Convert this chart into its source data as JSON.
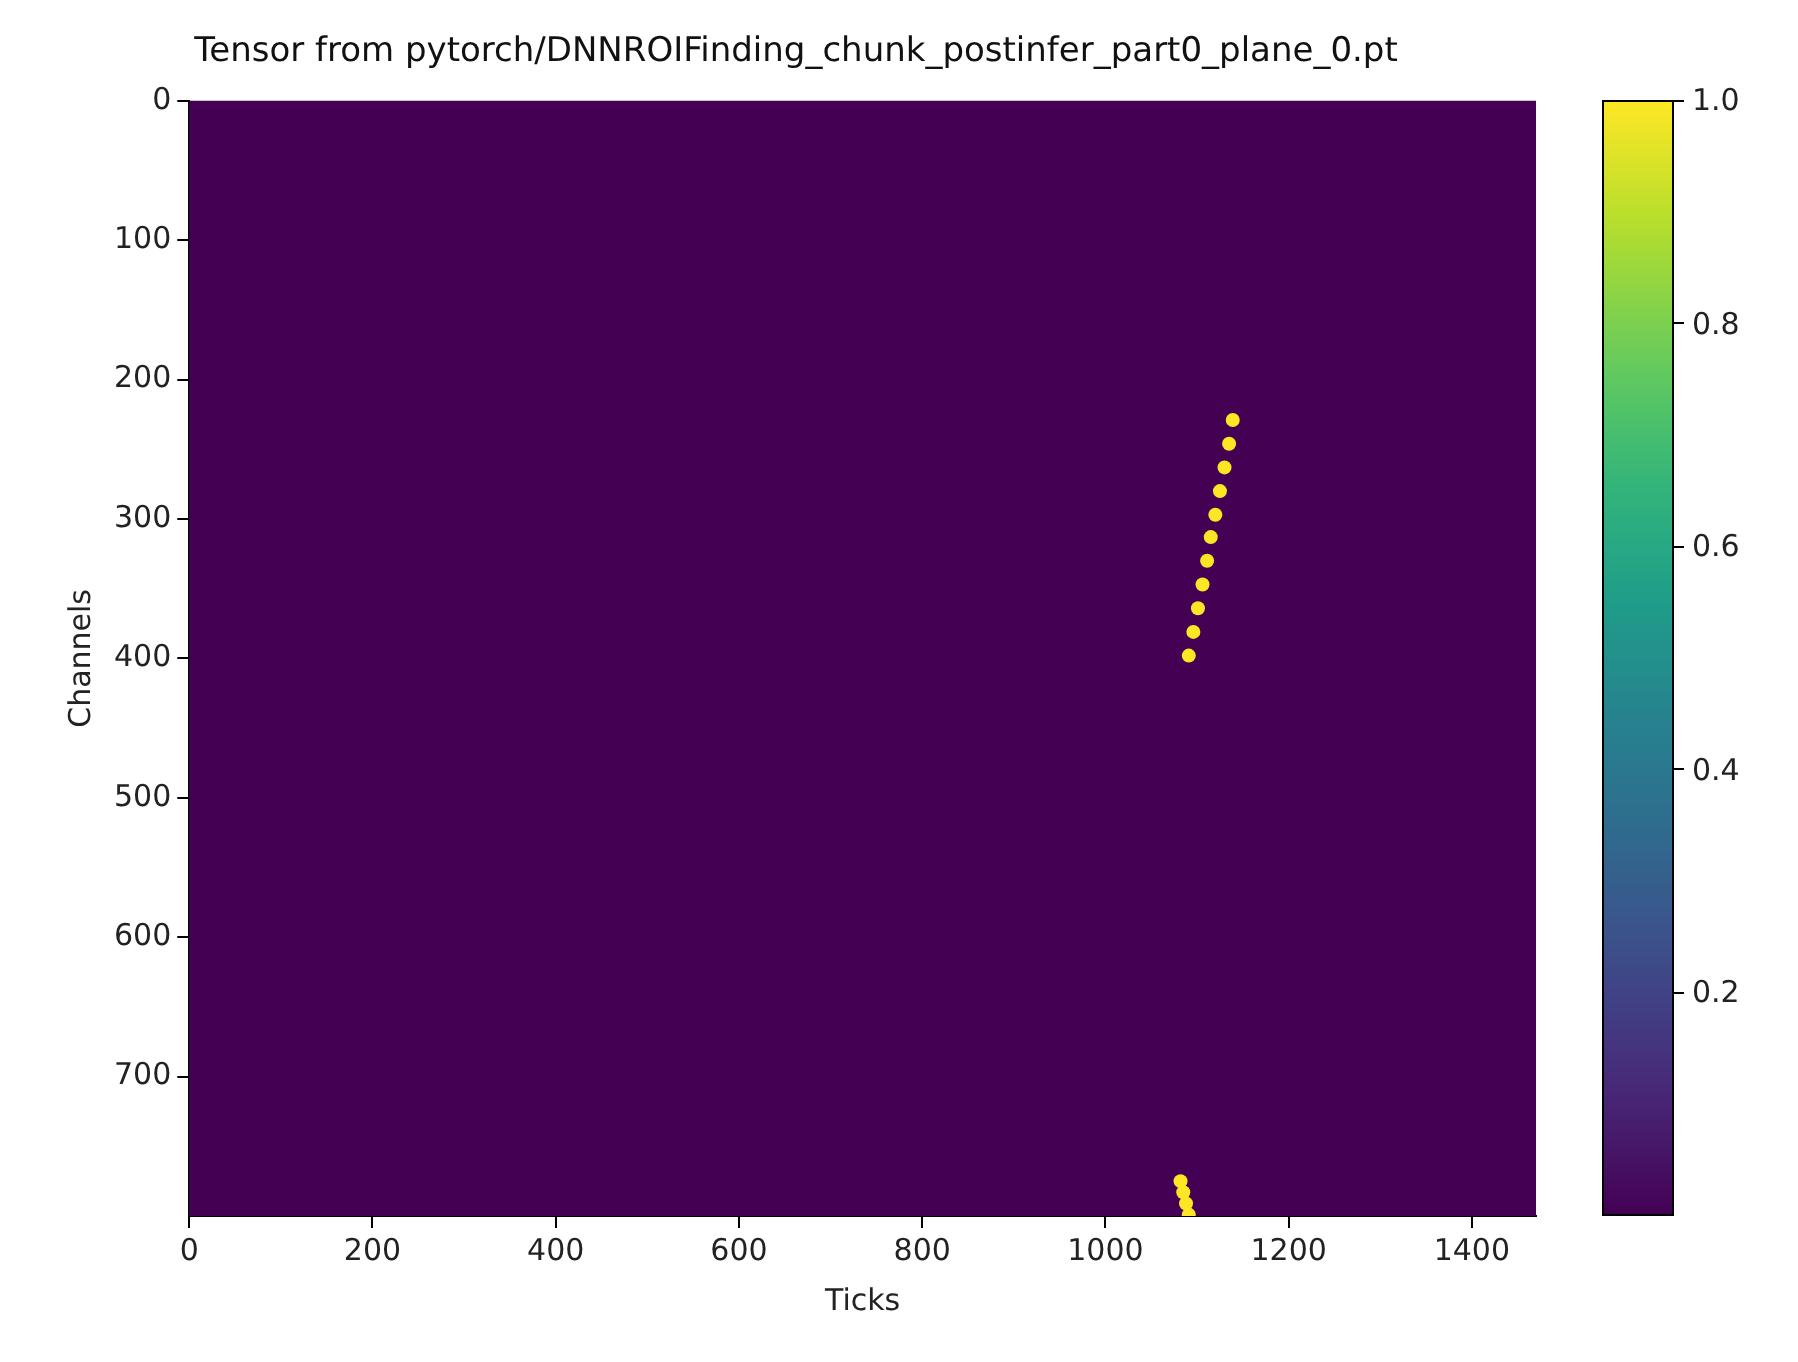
{
  "chart_data": {
    "type": "scatter",
    "title": "Tensor from pytorch/DNNROIFinding_chunk_postinfer_part0_plane_0.pt",
    "xlabel": "Ticks",
    "ylabel": "Channels",
    "series": [
      {
        "x": [
          1091,
          1096,
          1101,
          1106,
          1111,
          1115,
          1120,
          1125,
          1130,
          1135,
          1139
        ],
        "values": [
          398,
          381,
          364,
          347,
          330,
          313,
          297,
          280,
          263,
          246,
          229
        ],
        "cvalues": [
          1,
          1,
          1,
          1,
          1,
          1,
          1,
          1,
          1,
          1,
          1
        ]
      },
      {
        "x": [
          1082,
          1085,
          1088,
          1091
        ],
        "values": [
          775,
          783,
          791,
          799
        ],
        "cvalues": [
          1,
          1,
          1,
          1
        ]
      }
    ],
    "xlim": [
      0,
      1470
    ],
    "ylim": [
      800,
      0
    ],
    "xticks": [
      0,
      200,
      400,
      600,
      800,
      1000,
      1200,
      1400
    ],
    "yticks": [
      0,
      100,
      200,
      300,
      400,
      500,
      600,
      700
    ],
    "clim": [
      0,
      1
    ],
    "cticks": [
      0.2,
      0.4,
      0.6,
      0.8,
      {
        "value": 1,
        "label": "1.0"
      }
    ],
    "grid": false,
    "legend": false
  }
}
